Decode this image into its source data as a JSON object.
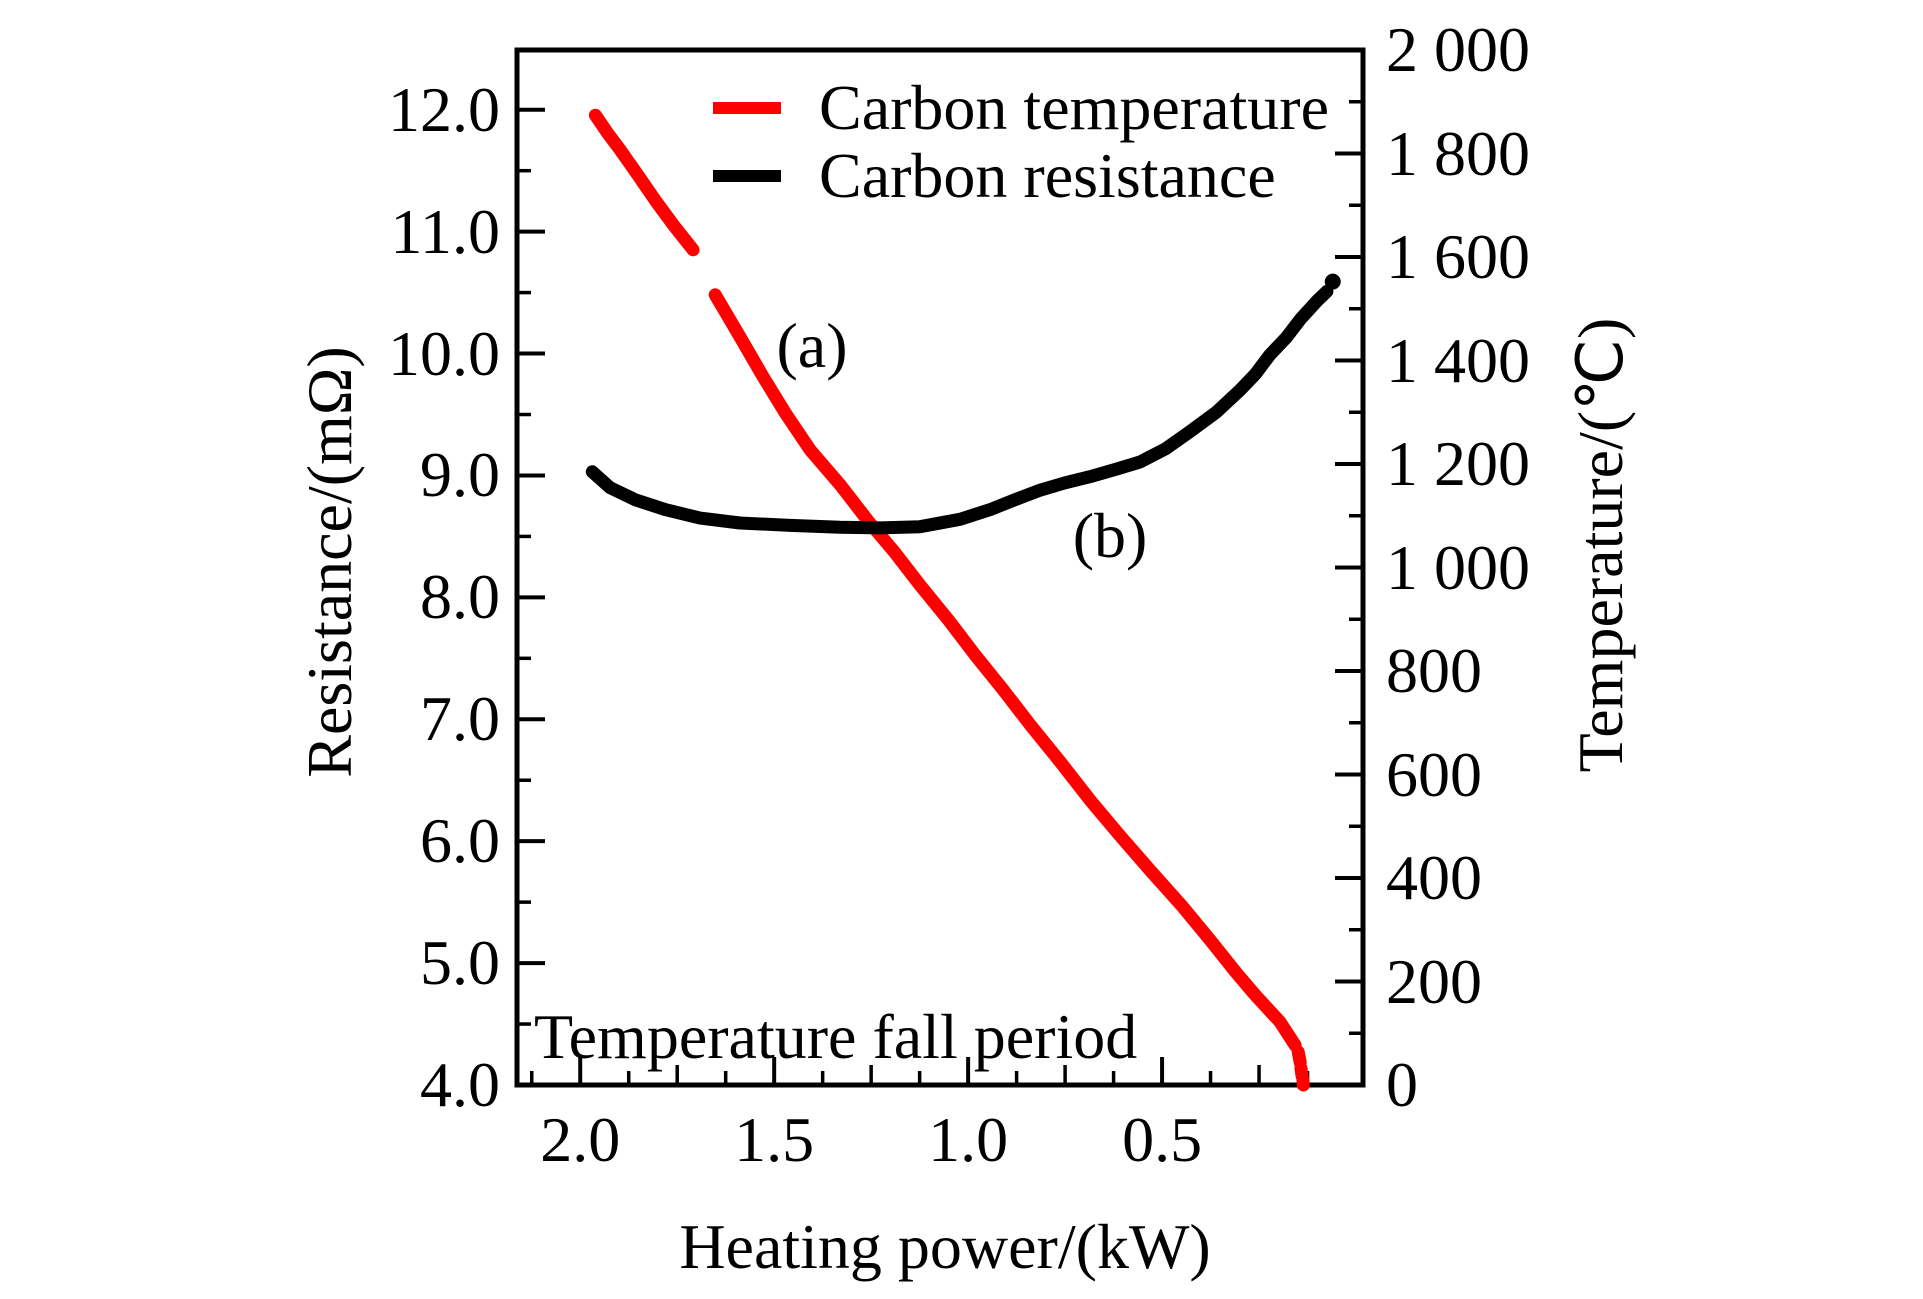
{
  "figure": {
    "background": "#ffffff",
    "frame_color": "#000000"
  },
  "chart_data": {
    "type": "line",
    "title": "",
    "annotations": [
      {
        "text": "(a)",
        "attached_to": "Carbon temperature"
      },
      {
        "text": "(b)",
        "attached_to": "Carbon resistance"
      },
      {
        "text": "Temperature fall period",
        "attached_to": "plot-area"
      }
    ],
    "legend": [
      {
        "label": "Carbon temperature",
        "color": "#ff0000"
      },
      {
        "label": "Carbon resistance",
        "color": "#000000"
      }
    ],
    "axes": {
      "x": {
        "title": "Heating power/(kW)",
        "unit": "kW",
        "reversed": true,
        "value_at_left": 2.163,
        "value_at_right": -0.018,
        "major_ticks": [
          {
            "value": 2.0,
            "label": "2.0"
          },
          {
            "value": 1.5,
            "label": "1.5"
          },
          {
            "value": 1.0,
            "label": "1.0"
          },
          {
            "value": 0.5,
            "label": "0.5"
          }
        ],
        "minor_step": 0.125
      },
      "y_left": {
        "title": "Resistance/(mΩ)",
        "unit": "mΩ",
        "min": 4.0,
        "max": 12.49,
        "major_ticks": [
          {
            "value": 12.0,
            "label": "12.0"
          },
          {
            "value": 11.0,
            "label": "11.0"
          },
          {
            "value": 10.0,
            "label": "10.0"
          },
          {
            "value": 9.0,
            "label": "9.0"
          },
          {
            "value": 8.0,
            "label": "8.0"
          },
          {
            "value": 7.0,
            "label": "7.0"
          },
          {
            "value": 6.0,
            "label": "6.0"
          },
          {
            "value": 5.0,
            "label": "5.0"
          },
          {
            "value": 4.0,
            "label": "4.0"
          }
        ],
        "minor_values": [
          11.5,
          10.5,
          9.5,
          8.5,
          7.5,
          6.5,
          5.5,
          4.5
        ]
      },
      "y_right": {
        "title": "Temperature/(℃)",
        "unit": "℃",
        "min": 0,
        "max": 2000,
        "major_ticks": [
          {
            "value": 2000,
            "label": "2 000"
          },
          {
            "value": 1800,
            "label": "1 800"
          },
          {
            "value": 1600,
            "label": "1 600"
          },
          {
            "value": 1400,
            "label": "1 400"
          },
          {
            "value": 1200,
            "label": "1 200"
          },
          {
            "value": 1000,
            "label": "1 000"
          },
          {
            "value": 800,
            "label": "800"
          },
          {
            "value": 600,
            "label": "600"
          },
          {
            "value": 400,
            "label": "400"
          },
          {
            "value": 200,
            "label": "200"
          },
          {
            "value": 0,
            "label": "0"
          }
        ],
        "minor_values": [
          1900,
          1700,
          1500,
          1300,
          1100,
          900,
          700,
          500,
          300,
          100
        ]
      }
    },
    "series": [
      {
        "name": "Carbon temperature",
        "axis": "y_right",
        "color": "#ff0000",
        "line_width": 13,
        "segments": [
          [
            [
              1.961,
              1874
            ],
            [
              1.93,
              1840
            ],
            [
              1.897,
              1807
            ],
            [
              1.85,
              1757
            ],
            [
              1.807,
              1710
            ],
            [
              1.76,
              1662
            ],
            [
              1.709,
              1614
            ]
          ],
          [
            [
              1.652,
              1527
            ],
            [
              1.59,
              1448
            ],
            [
              1.528,
              1368
            ],
            [
              1.47,
              1297
            ],
            [
              1.407,
              1227
            ],
            [
              1.33,
              1160
            ],
            [
              1.26,
              1092
            ],
            [
              1.19,
              1030
            ],
            [
              1.124,
              966
            ],
            [
              1.05,
              898
            ],
            [
              0.982,
              831
            ],
            [
              0.91,
              764
            ],
            [
              0.84,
              696
            ],
            [
              0.76,
              622
            ],
            [
              0.686,
              551
            ],
            [
              0.61,
              483
            ],
            [
              0.531,
              415
            ],
            [
              0.45,
              347
            ],
            [
              0.376,
              280
            ],
            [
              0.31,
              218
            ],
            [
              0.26,
              174
            ],
            [
              0.196,
              122
            ],
            [
              0.157,
              77
            ]
          ],
          [
            [
              0.149,
              64
            ],
            [
              0.144,
              44
            ]
          ],
          [
            [
              0.142,
              33
            ],
            [
              0.139,
              17
            ]
          ],
          [
            [
              0.137,
              10
            ],
            [
              0.136,
              0
            ]
          ]
        ]
      },
      {
        "name": "Carbon resistance",
        "axis": "y_left",
        "color": "#000000",
        "line_width": 13,
        "segments": [
          [
            [
              1.969,
              9.03
            ],
            [
              1.923,
              8.9
            ],
            [
              1.858,
              8.8
            ],
            [
              1.781,
              8.72
            ],
            [
              1.691,
              8.65
            ],
            [
              1.588,
              8.61
            ],
            [
              1.459,
              8.59
            ],
            [
              1.33,
              8.575
            ],
            [
              1.227,
              8.57
            ],
            [
              1.124,
              8.58
            ],
            [
              1.021,
              8.64
            ],
            [
              0.943,
              8.72
            ],
            [
              0.88,
              8.8
            ],
            [
              0.814,
              8.88
            ],
            [
              0.75,
              8.94
            ],
            [
              0.686,
              8.99
            ],
            [
              0.62,
              9.05
            ],
            [
              0.557,
              9.11
            ],
            [
              0.49,
              9.22
            ],
            [
              0.428,
              9.36
            ],
            [
              0.36,
              9.52
            ],
            [
              0.299,
              9.7
            ],
            [
              0.26,
              9.83
            ],
            [
              0.222,
              9.99
            ],
            [
              0.18,
              10.13
            ],
            [
              0.144,
              10.28
            ],
            [
              0.098,
              10.44
            ],
            [
              0.075,
              10.51
            ]
          ]
        ],
        "end_dot": [
          0.06,
          10.59
        ]
      }
    ]
  }
}
